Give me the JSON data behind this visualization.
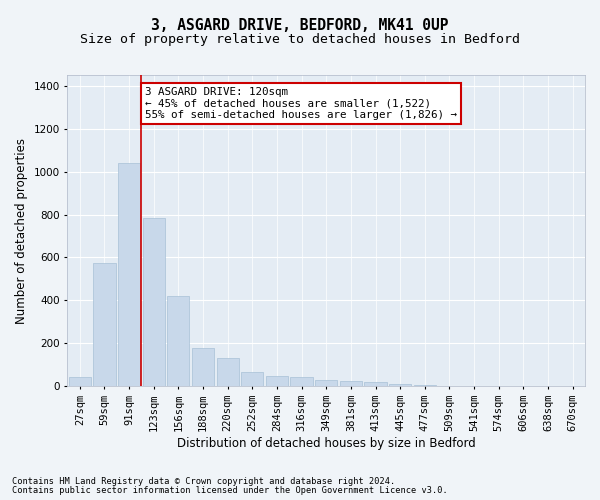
{
  "title": "3, ASGARD DRIVE, BEDFORD, MK41 0UP",
  "subtitle": "Size of property relative to detached houses in Bedford",
  "xlabel": "Distribution of detached houses by size in Bedford",
  "ylabel": "Number of detached properties",
  "footnote1": "Contains HM Land Registry data © Crown copyright and database right 2024.",
  "footnote2": "Contains public sector information licensed under the Open Government Licence v3.0.",
  "bar_labels": [
    "27sqm",
    "59sqm",
    "91sqm",
    "123sqm",
    "156sqm",
    "188sqm",
    "220sqm",
    "252sqm",
    "284sqm",
    "316sqm",
    "349sqm",
    "381sqm",
    "413sqm",
    "445sqm",
    "477sqm",
    "509sqm",
    "541sqm",
    "574sqm",
    "606sqm",
    "638sqm",
    "670sqm"
  ],
  "bar_values": [
    45,
    575,
    1040,
    785,
    420,
    180,
    130,
    65,
    50,
    45,
    30,
    27,
    20,
    12,
    8,
    0,
    0,
    0,
    0,
    0,
    0
  ],
  "bar_color": "#c8d8ea",
  "bar_edgecolor": "#a8c0d6",
  "annotation_line1": "3 ASGARD DRIVE: 120sqm",
  "annotation_line2": "← 45% of detached houses are smaller (1,522)",
  "annotation_line3": "55% of semi-detached houses are larger (1,826) →",
  "vline_color": "#cc0000",
  "annotation_box_edgecolor": "#cc0000",
  "annotation_box_facecolor": "#ffffff",
  "ylim": [
    0,
    1450
  ],
  "yticks": [
    0,
    200,
    400,
    600,
    800,
    1000,
    1200,
    1400
  ],
  "background_color": "#f0f4f8",
  "plot_bg_color": "#e4ecf4",
  "grid_color": "#ffffff",
  "title_fontsize": 10.5,
  "subtitle_fontsize": 9.5,
  "axis_label_fontsize": 8.5,
  "tick_fontsize": 7.5,
  "annotation_fontsize": 7.8,
  "footnote_fontsize": 6.2
}
